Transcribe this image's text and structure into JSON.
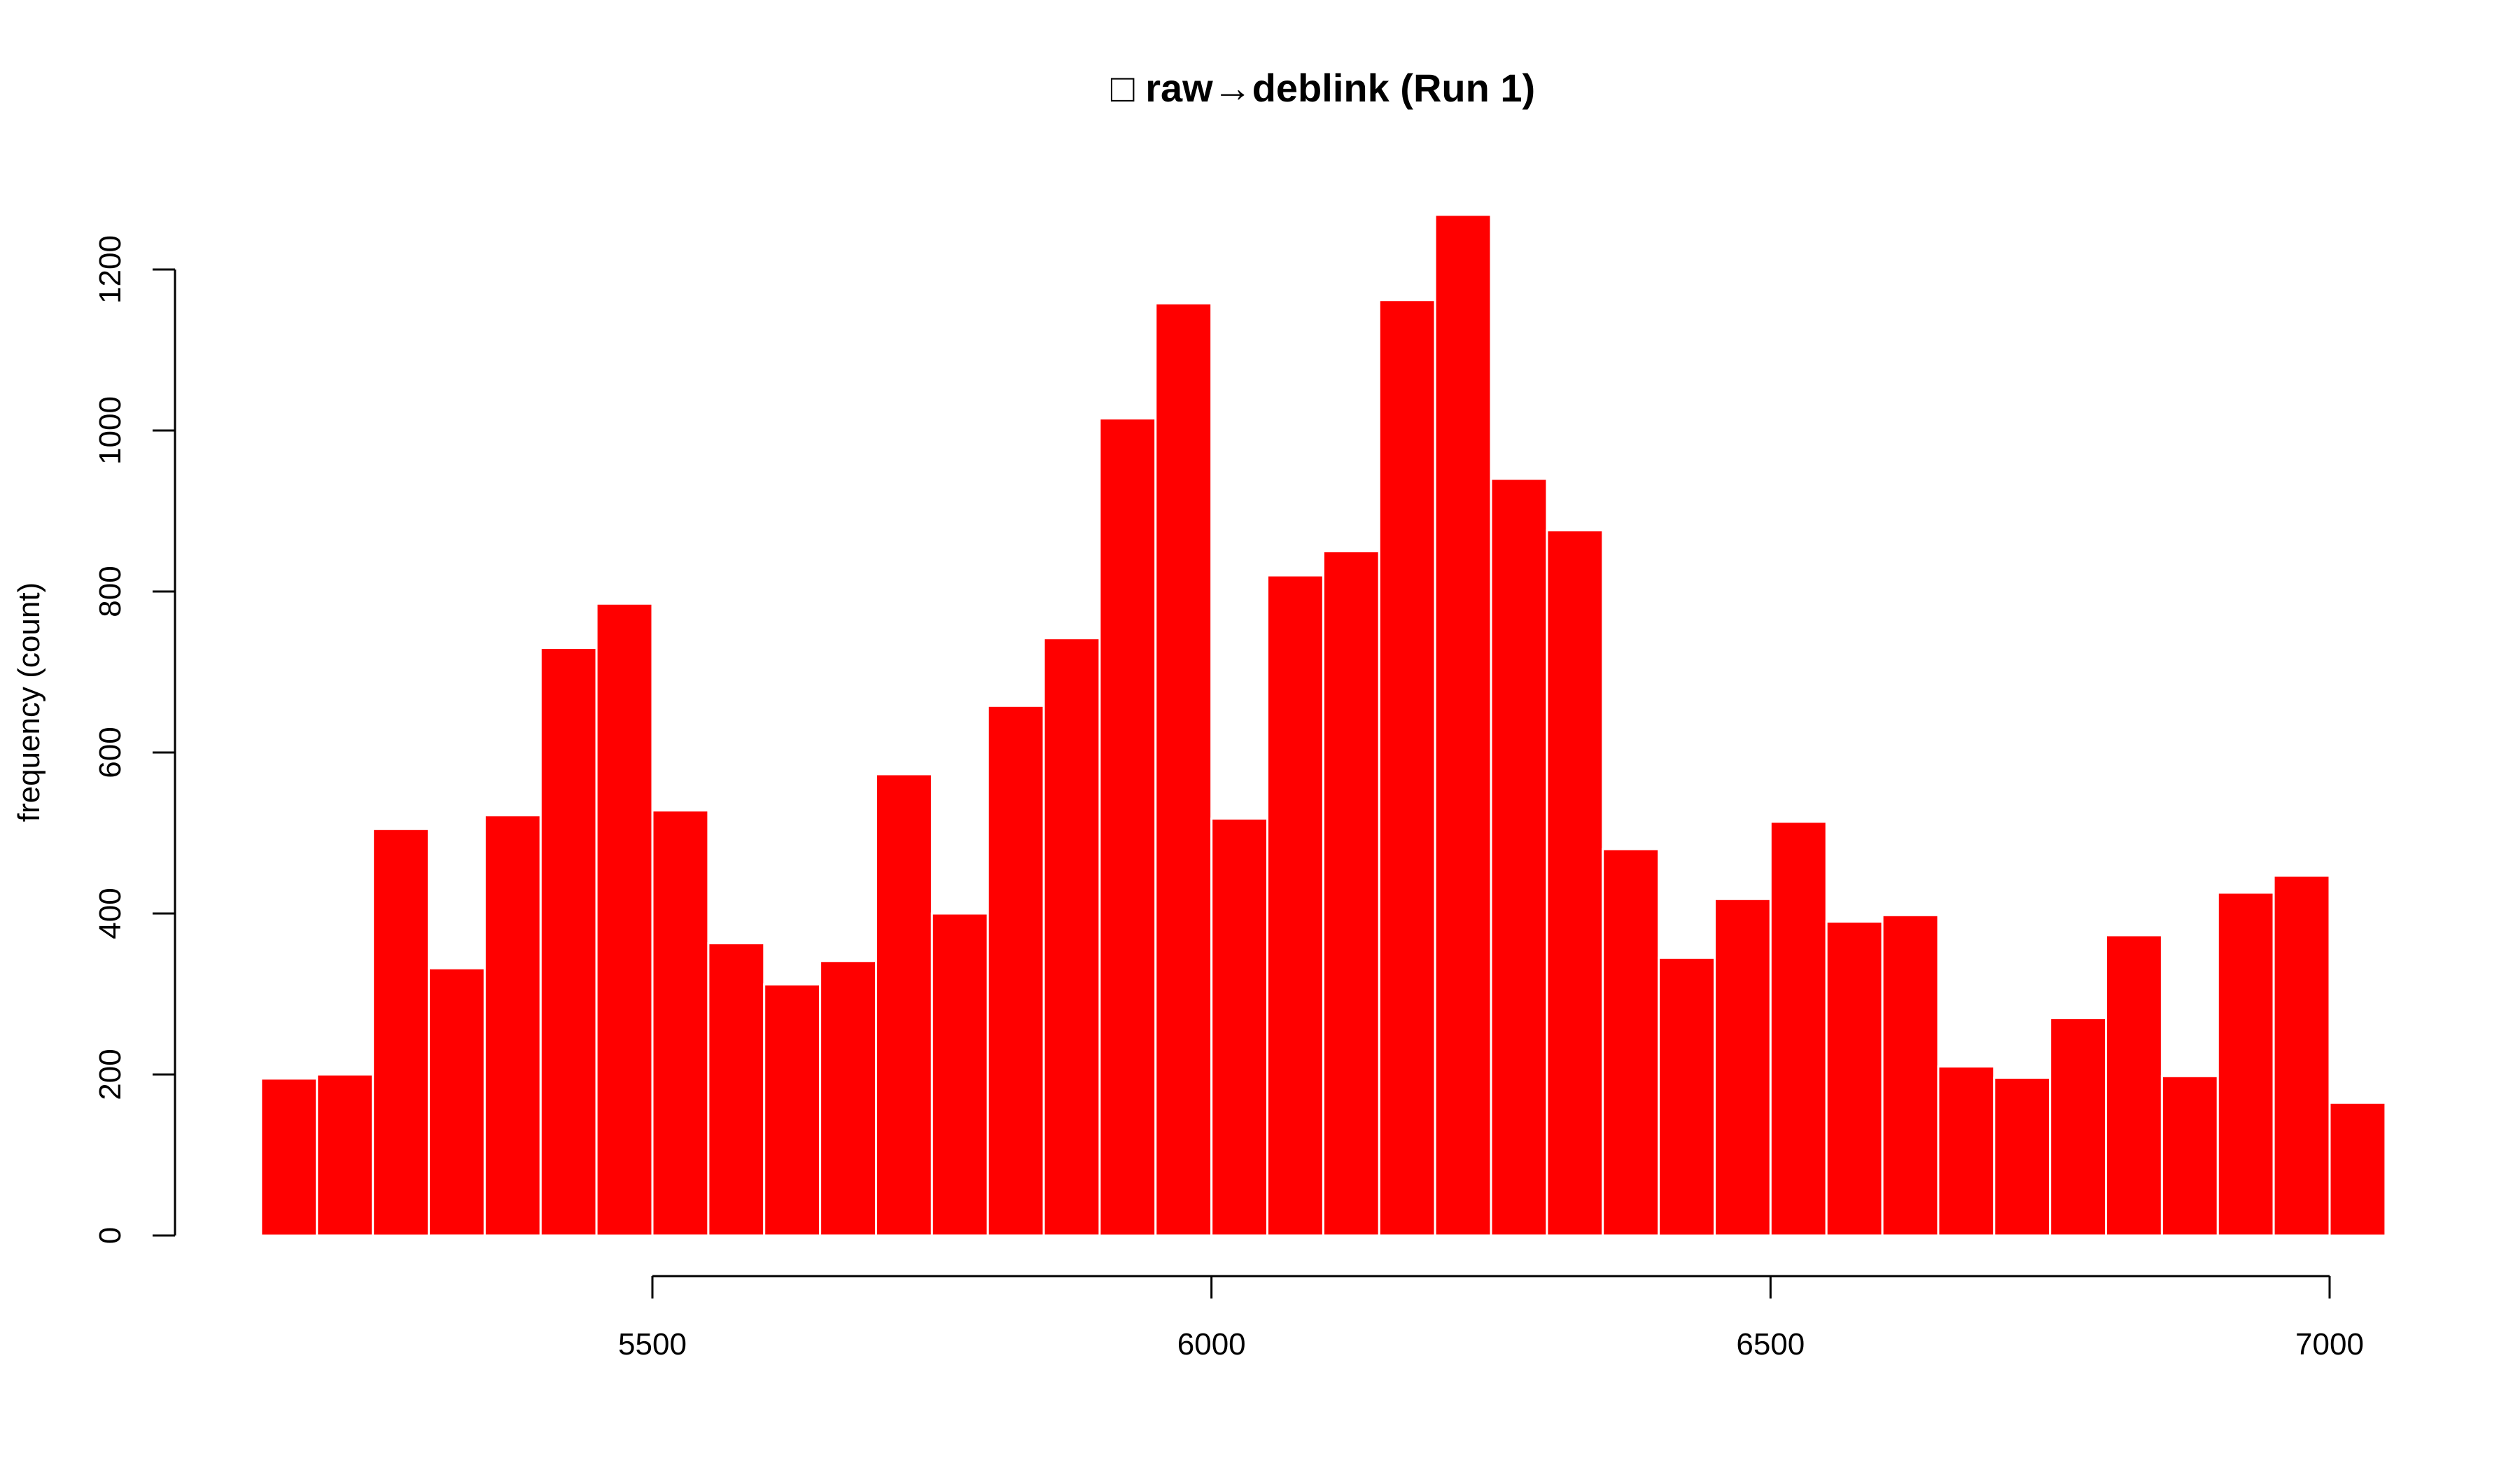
{
  "chart_data": {
    "type": "bar",
    "title": "□ raw→deblink (Run 1)",
    "xlabel": "",
    "ylabel": "frequency (count)",
    "bin_width": 50,
    "x_start": 5150,
    "values": [
      195,
      200,
      505,
      332,
      522,
      730,
      785,
      528,
      363,
      312,
      341,
      573,
      400,
      658,
      742,
      1015,
      1158,
      518,
      820,
      850,
      1162,
      1268,
      940,
      876,
      480,
      345,
      418,
      514,
      390,
      398,
      210,
      196,
      270,
      373,
      198,
      426,
      447,
      165
    ],
    "xlim": [
      5150,
      7050
    ],
    "ylim": [
      0,
      1268
    ],
    "x_ticks": [
      5500,
      6000,
      6500,
      7000
    ],
    "y_ticks": [
      0,
      200,
      400,
      600,
      800,
      1000,
      1200
    ],
    "grid": false,
    "legend": "none",
    "bar_color": "#ff0000"
  }
}
